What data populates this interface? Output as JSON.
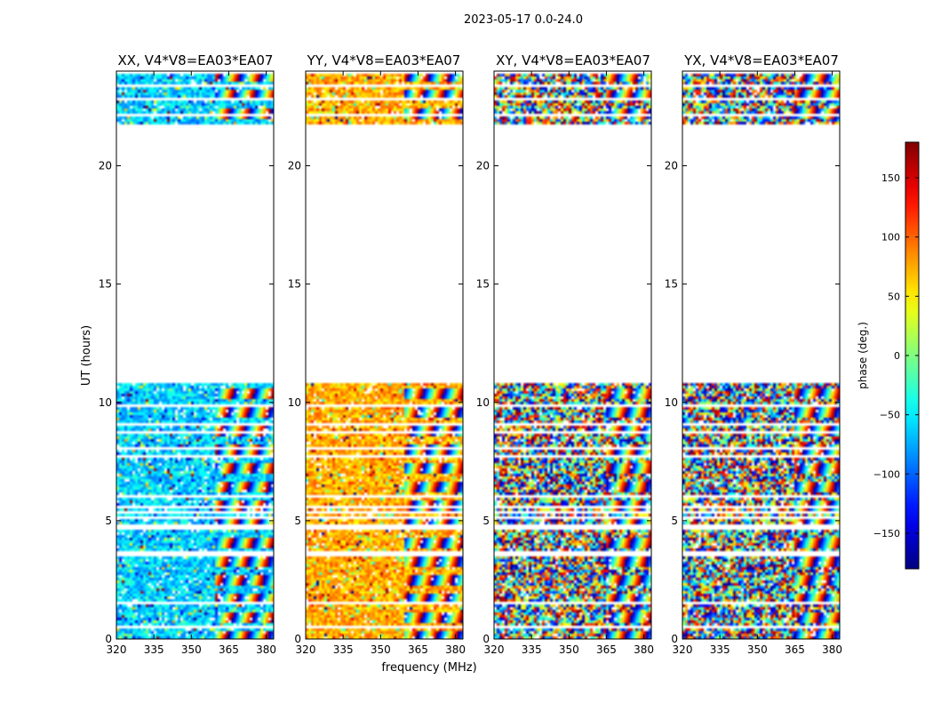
{
  "figure": {
    "suptitle": "2023-05-17 0.0-24.0",
    "xlabel": "frequency (MHz)",
    "ylabel": "UT (hours)"
  },
  "chart_data": {
    "type": "heatmap",
    "x_ticks": [
      "320",
      "335",
      "350",
      "365",
      "380"
    ],
    "x_tick_values": [
      320,
      335,
      350,
      365,
      380
    ],
    "xlim": [
      320,
      383
    ],
    "y_ticks": [
      "0",
      "5",
      "10",
      "15",
      "20"
    ],
    "y_tick_values": [
      0,
      5,
      10,
      15,
      20
    ],
    "ylim": [
      0,
      24
    ],
    "valid_hour_ranges": [
      [
        0.0,
        4.6
      ],
      [
        4.9,
        6.0
      ],
      [
        6.1,
        10.8
      ],
      [
        21.7,
        23.9
      ]
    ],
    "blank_hour_rows": [
      0.5,
      1.5,
      3.5,
      3.7,
      5.1,
      5.3,
      5.6,
      7.7,
      8.1,
      8.7,
      9.1,
      9.85,
      22.1,
      22.8,
      23.4
    ],
    "panels": [
      {
        "title": "XX, V4*V8=EA03*EA07",
        "mean_phase": -60,
        "spread": 35,
        "fringe_start_mhz": 360
      },
      {
        "title": "YY, V4*V8=EA03*EA07",
        "mean_phase": 75,
        "spread": 30,
        "fringe_start_mhz": 360
      },
      {
        "title": "XY, V4*V8=EA03*EA07",
        "mean_phase": 0,
        "spread": 180,
        "fringe_start_mhz": 365
      },
      {
        "title": "YX, V4*V8=EA03*EA07",
        "mean_phase": 0,
        "spread": 180,
        "fringe_start_mhz": 365
      }
    ],
    "colorbar": {
      "label": "phase (deg.)",
      "range": [
        -180,
        180
      ],
      "ticks": [
        "150",
        "100",
        "50",
        "0",
        "−50",
        "−100",
        "−150"
      ],
      "tick_values": [
        150,
        100,
        50,
        0,
        -50,
        -100,
        -150
      ],
      "colormap": "jet"
    }
  }
}
